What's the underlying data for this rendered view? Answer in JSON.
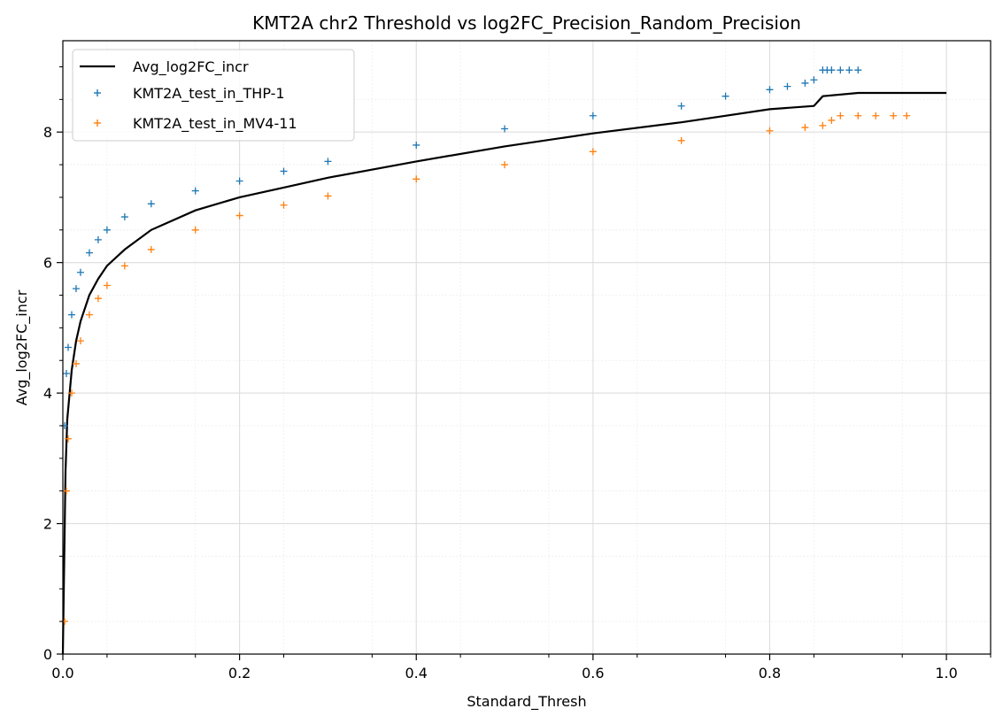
{
  "chart_data": {
    "type": "line",
    "title": "KMT2A chr2 Threshold vs log2FC_Precision_Random_Precision",
    "xlabel": "Standard_Thresh",
    "ylabel": "Avg_log2FC_incr",
    "xlim": [
      0.0,
      1.05
    ],
    "ylim": [
      0,
      9.4
    ],
    "xticks": [
      "0.0",
      "0.2",
      "0.4",
      "0.6",
      "0.8",
      "1.0"
    ],
    "yticks": [
      "0",
      "2",
      "4",
      "6",
      "8"
    ],
    "grid": true,
    "legend_position": "top-left",
    "series": [
      {
        "name": "Avg_log2FC_incr",
        "kind": "line",
        "color": "#000000",
        "x": [
          0.0,
          0.003,
          0.005,
          0.01,
          0.015,
          0.02,
          0.03,
          0.04,
          0.05,
          0.07,
          0.1,
          0.15,
          0.2,
          0.25,
          0.3,
          0.4,
          0.5,
          0.6,
          0.7,
          0.8,
          0.85,
          0.86,
          0.9,
          1.0
        ],
        "y": [
          0.0,
          2.8,
          3.6,
          4.35,
          4.8,
          5.1,
          5.5,
          5.75,
          5.95,
          6.2,
          6.5,
          6.8,
          7.0,
          7.15,
          7.3,
          7.55,
          7.78,
          7.98,
          8.15,
          8.35,
          8.4,
          8.55,
          8.6,
          8.6
        ]
      },
      {
        "name": "KMT2A_test_in_THP-1",
        "kind": "scatter",
        "marker": "+",
        "color": "#1f77b4",
        "x": [
          0.002,
          0.004,
          0.006,
          0.01,
          0.015,
          0.02,
          0.03,
          0.04,
          0.05,
          0.07,
          0.1,
          0.15,
          0.2,
          0.25,
          0.3,
          0.4,
          0.5,
          0.6,
          0.7,
          0.75,
          0.8,
          0.82,
          0.84,
          0.85,
          0.86,
          0.865,
          0.87,
          0.88,
          0.89,
          0.9
        ],
        "y": [
          3.5,
          4.3,
          4.7,
          5.2,
          5.6,
          5.85,
          6.15,
          6.35,
          6.5,
          6.7,
          6.9,
          7.1,
          7.25,
          7.4,
          7.55,
          7.8,
          8.05,
          8.25,
          8.4,
          8.55,
          8.65,
          8.7,
          8.75,
          8.8,
          8.95,
          8.95,
          8.95,
          8.95,
          8.95,
          8.95
        ]
      },
      {
        "name": "KMT2A_test_in_MV4-11",
        "kind": "scatter",
        "marker": "+",
        "color": "#ff7f0e",
        "x": [
          0.002,
          0.004,
          0.006,
          0.01,
          0.015,
          0.02,
          0.03,
          0.04,
          0.05,
          0.07,
          0.1,
          0.15,
          0.2,
          0.25,
          0.3,
          0.4,
          0.5,
          0.6,
          0.7,
          0.8,
          0.84,
          0.86,
          0.87,
          0.88,
          0.9,
          0.92,
          0.94,
          0.955
        ],
        "y": [
          0.5,
          2.5,
          3.3,
          4.0,
          4.45,
          4.8,
          5.2,
          5.45,
          5.65,
          5.95,
          6.2,
          6.5,
          6.72,
          6.88,
          7.02,
          7.28,
          7.5,
          7.7,
          7.87,
          8.02,
          8.07,
          8.1,
          8.18,
          8.25,
          8.25,
          8.25,
          8.25,
          8.25
        ]
      }
    ]
  }
}
